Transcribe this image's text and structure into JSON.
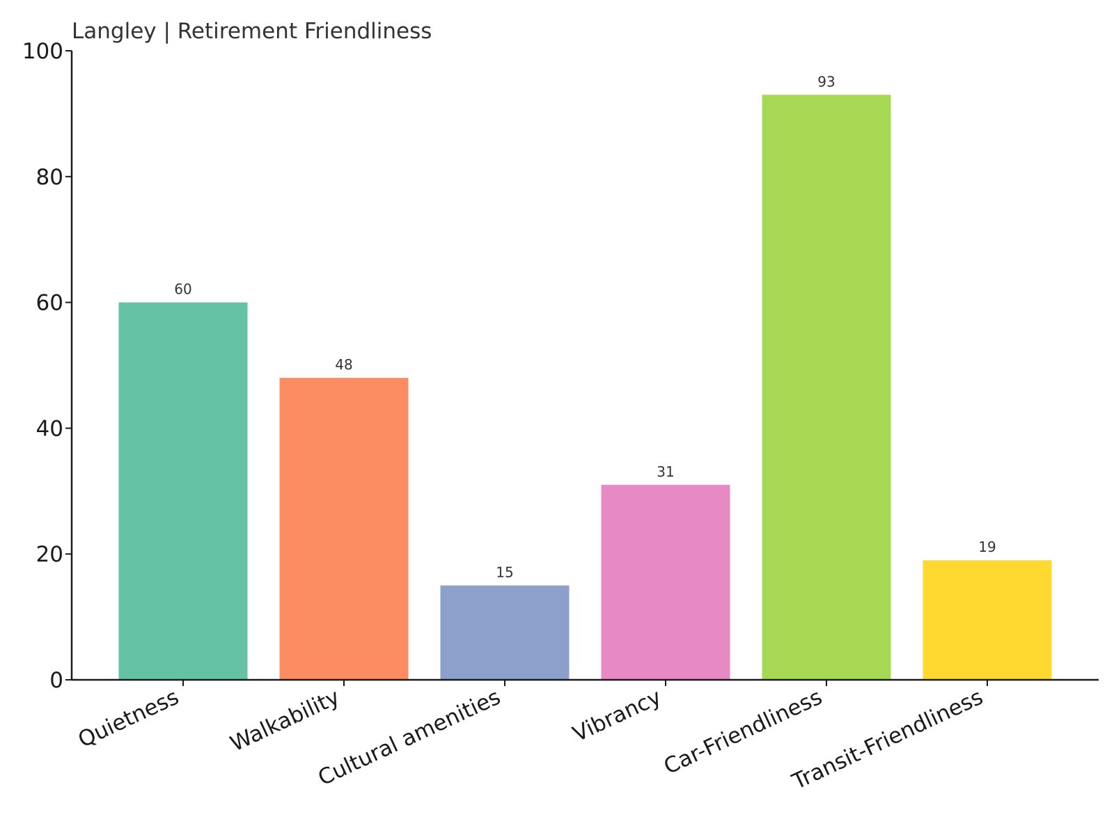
{
  "chart_data": {
    "type": "bar",
    "title": "Langley | Retirement Friendliness",
    "xlabel": "",
    "ylabel": "",
    "ylim": [
      0,
      100
    ],
    "yticks": [
      0,
      20,
      40,
      60,
      80,
      100
    ],
    "grid": false,
    "categories": [
      "Quietness",
      "Walkability",
      "Cultural amenities",
      "Vibrancy",
      "Car-Friendliness",
      "Transit-Friendliness"
    ],
    "values": [
      60,
      48,
      15,
      31,
      93,
      19
    ],
    "value_labels": [
      "60",
      "48",
      "15",
      "31",
      "93",
      "19"
    ],
    "colors": [
      "#66c2a5",
      "#fc8d62",
      "#8da0cb",
      "#e78ac3",
      "#a6d854",
      "#ffd92f"
    ]
  }
}
